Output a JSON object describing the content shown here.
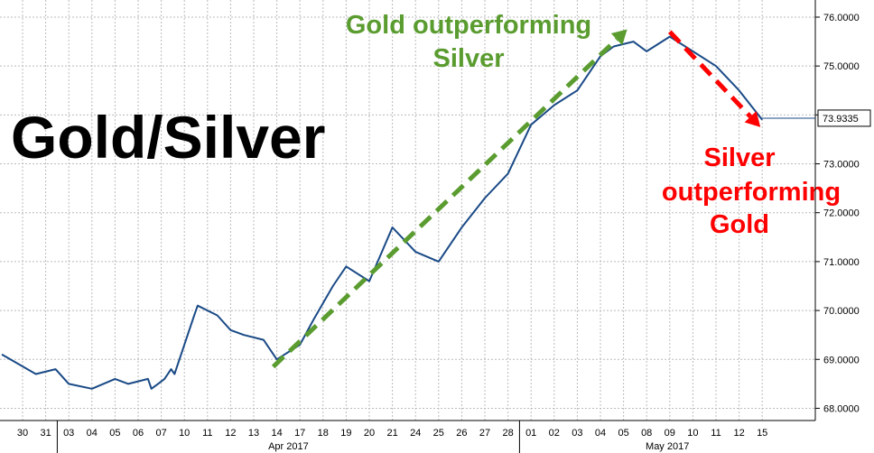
{
  "chart_data": {
    "type": "line",
    "title": "Gold/Silver",
    "xlabel": "",
    "ylabel": "",
    "ylim": [
      67.75,
      76.35
    ],
    "y_ticks": [
      "68.0000",
      "69.0000",
      "70.0000",
      "71.0000",
      "72.0000",
      "73.0000",
      "74.0000",
      "75.0000",
      "76.0000"
    ],
    "y_tick_values": [
      68,
      69,
      70,
      71,
      72,
      73,
      74,
      75,
      76
    ],
    "x_days": [
      "30",
      "31",
      "03",
      "04",
      "05",
      "06",
      "07",
      "10",
      "11",
      "12",
      "13",
      "14",
      "17",
      "18",
      "19",
      "20",
      "21",
      "24",
      "25",
      "26",
      "27",
      "28",
      "01",
      "02",
      "03",
      "04",
      "05",
      "08",
      "09",
      "10",
      "11",
      "12",
      "15"
    ],
    "x_months": [
      {
        "label": "Apr 2017",
        "start_day": "03"
      },
      {
        "label": "May 2017",
        "start_day": "01"
      }
    ],
    "last_value": "73.9335",
    "grid": true,
    "series": [
      {
        "values": [
          69.1,
          68.7,
          68.8,
          68.5,
          68.4,
          68.6,
          68.5,
          68.6,
          68.4,
          68.5,
          68.6,
          68.8,
          68.7,
          69.9,
          70.1,
          69.9,
          69.6,
          69.5,
          69.4,
          69.0,
          69.3,
          69.8,
          70.5,
          70.9,
          70.6,
          71.7,
          71.2,
          71.0,
          71.7,
          72.3,
          72.8,
          73.8,
          74.2,
          74.5,
          75.2,
          75.4,
          75.5,
          75.3,
          75.6,
          75.3,
          75.0,
          74.5,
          73.9
        ],
        "x": [
          "30",
          "31",
          "31",
          "03",
          "04",
          "05",
          "06",
          "06",
          "07",
          "07",
          "07",
          "07",
          "10",
          "10",
          "11",
          "11",
          "12",
          "13",
          "13",
          "14",
          "17",
          "18",
          "18",
          "19",
          "20",
          "21",
          "24",
          "25",
          "26",
          "27",
          "28",
          "01",
          "02",
          "03",
          "04",
          "05",
          "05",
          "08",
          "09",
          "10",
          "11",
          "12",
          "15"
        ]
      }
    ],
    "annotations": [
      {
        "text_lines": [
          "Gold outperforming",
          "Silver"
        ],
        "color": "#5a9c2f"
      },
      {
        "text_lines": [
          "Silver",
          "outperforming",
          "Gold"
        ],
        "color": "#ff0000"
      }
    ],
    "colors": {
      "line": "#1a4a86",
      "green": "#5a9c2f",
      "red": "#ff0000",
      "grid": "#bbbbbb"
    }
  }
}
